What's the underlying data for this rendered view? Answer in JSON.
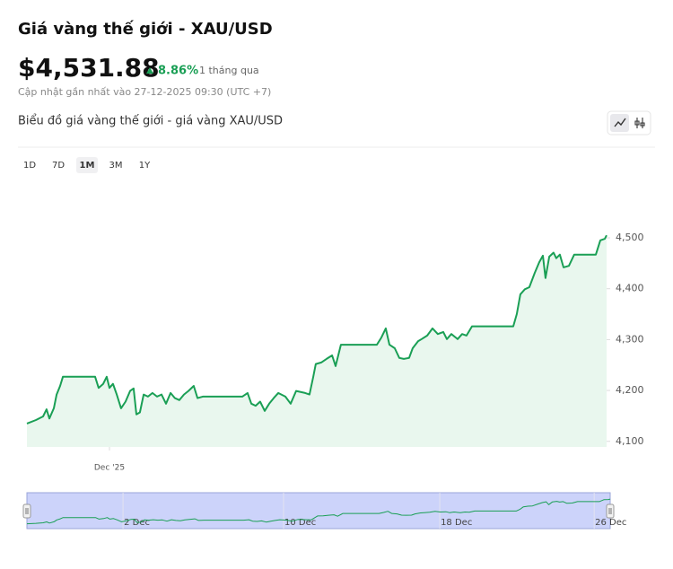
{
  "header": {
    "title": "Giá vàng thế giới - XAU/USD",
    "price": "$4,531.88",
    "change": "8.86%",
    "period": "1 tháng qua",
    "updated": "Cập nhật gần nhất vào 27-12-2025 09:30 (UTC +7)"
  },
  "chart_data": {
    "type": "line",
    "title": "Biểu đồ giá vàng thế giới - giá vàng XAU/USD",
    "ranges": [
      "1D",
      "7D",
      "1M",
      "3M",
      "1Y"
    ],
    "active_range": "1M",
    "x": [
      0,
      0.46,
      0.82,
      1.0,
      1.14,
      1.37,
      1.51,
      1.69,
      1.83,
      3.47,
      3.65,
      3.88,
      4.06,
      4.2,
      4.38,
      4.57,
      4.79,
      5.02,
      5.25,
      5.43,
      5.57,
      5.75,
      5.94,
      6.16,
      6.39,
      6.62,
      6.85,
      7.08,
      7.31,
      7.53,
      7.76,
      7.99,
      8.22,
      8.49,
      8.68,
      8.95,
      10.96,
      11.23,
      11.42,
      11.64,
      11.87,
      12.1,
      12.33,
      12.56,
      12.79,
      13.15,
      13.42,
      13.7,
      14.16,
      14.38,
      14.57,
      14.7,
      14.98,
      15.25,
      15.53,
      15.71,
      15.98,
      17.81,
      18.04,
      18.26,
      18.45,
      18.72,
      18.95,
      19.18,
      19.45,
      19.63,
      19.91,
      20.09,
      20.37,
      20.64,
      20.91,
      21.19,
      21.37,
      21.6,
      21.92,
      22.15,
      22.37,
      22.65,
      24.75,
      24.93,
      25.11,
      25.34,
      25.57,
      25.84,
      26.07,
      26.26,
      26.39,
      26.58,
      26.8,
      26.94,
      27.12,
      27.31,
      27.58,
      27.85,
      28.95,
      29.18,
      29.41,
      29.5
    ],
    "series": [
      {
        "name": "XAU/USD",
        "color": "#1a9f55",
        "values": [
          4135,
          4142,
          4149,
          4163,
          4145,
          4165,
          4192,
          4209,
          4227,
          4227,
          4205,
          4213,
          4227,
          4205,
          4213,
          4192,
          4165,
          4178,
          4199,
          4204,
          4153,
          4157,
          4192,
          4188,
          4195,
          4188,
          4192,
          4174,
          4195,
          4185,
          4181,
          4192,
          4199,
          4209,
          4185,
          4188,
          4188,
          4195,
          4174,
          4170,
          4178,
          4160,
          4174,
          4185,
          4195,
          4188,
          4174,
          4199,
          4195,
          4192,
          4227,
          4252,
          4255,
          4262,
          4269,
          4248,
          4290,
          4290,
          4304,
          4322,
          4290,
          4283,
          4264,
          4262,
          4264,
          4283,
          4297,
          4301,
          4308,
          4322,
          4311,
          4315,
          4301,
          4311,
          4301,
          4311,
          4308,
          4326,
          4326,
          4350,
          4389,
          4399,
          4403,
          4431,
          4452,
          4465,
          4421,
          4463,
          4471,
          4460,
          4467,
          4442,
          4445,
          4467,
          4467,
          4495,
          4498,
          4505
        ]
      }
    ],
    "xlim": [
      0,
      29.5
    ],
    "xticks": [
      {
        "value": 4.2,
        "label": "Dec '25"
      }
    ],
    "ylim": [
      4089,
      4560
    ],
    "yticks": [
      {
        "value": 4100,
        "label": "4,100"
      },
      {
        "value": 4200,
        "label": "4,200"
      },
      {
        "value": 4300,
        "label": "4,300"
      },
      {
        "value": 4400,
        "label": "4,400"
      },
      {
        "value": 4500,
        "label": "4,500"
      }
    ],
    "navigator_xticks": [
      {
        "value": 4.86,
        "label": "2 Dec"
      },
      {
        "value": 12.98,
        "label": "10 Dec"
      },
      {
        "value": 20.88,
        "label": "18 Dec"
      },
      {
        "value": 28.69,
        "label": "26 Dec"
      }
    ]
  }
}
